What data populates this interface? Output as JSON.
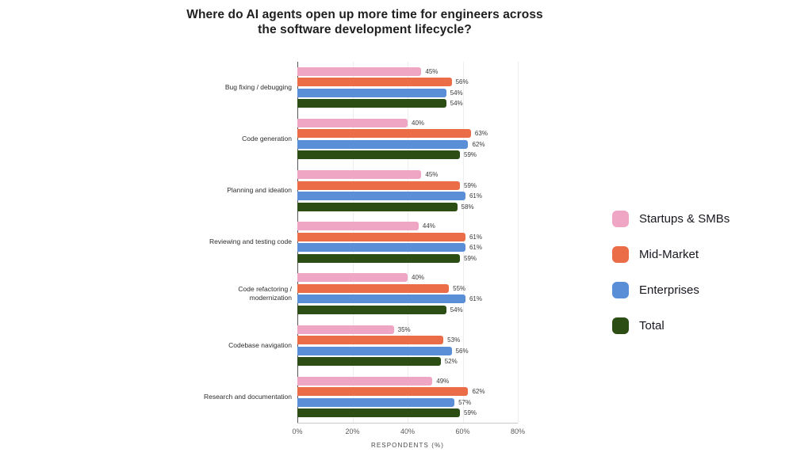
{
  "chart_data": {
    "type": "bar",
    "orientation": "horizontal",
    "title": "Where do AI agents open up more time for engineers across the software development lifecycle?",
    "xlabel": "RESPONDENTS (%)",
    "xlim": [
      0,
      80
    ],
    "xticks": [
      {
        "value": 0,
        "label": "0%"
      },
      {
        "value": 20,
        "label": "20%"
      },
      {
        "value": 40,
        "label": "40%"
      },
      {
        "value": 60,
        "label": "60%"
      },
      {
        "value": 80,
        "label": "80%"
      }
    ],
    "grid": true,
    "legend_position": "right",
    "value_label_suffix": "%",
    "categories": [
      "Bug fixing / debugging",
      "Code generation",
      "Planning and ideation",
      "Reviewing and testing code",
      "Code refactoring / modernization",
      "Codebase navigation",
      "Research and documentation"
    ],
    "series": [
      {
        "name": "Startups & SMBs",
        "color": "#EFA6C4",
        "values": [
          45,
          40,
          45,
          44,
          40,
          35,
          49
        ]
      },
      {
        "name": "Mid-Market",
        "color": "#EA6D47",
        "values": [
          56,
          63,
          59,
          61,
          55,
          53,
          62
        ]
      },
      {
        "name": "Enterprises",
        "color": "#5A8ED7",
        "values": [
          54,
          62,
          61,
          61,
          61,
          56,
          57
        ]
      },
      {
        "name": "Total",
        "color": "#2C4D13",
        "values": [
          54,
          59,
          58,
          59,
          54,
          52,
          59
        ]
      }
    ]
  },
  "colors": {
    "background": "#ffffff",
    "title_text": "#1f1f1f",
    "axis_line": "#55565a",
    "baseline": "#c9c9c9",
    "gridline": "#eeeeee",
    "tick_text": "#5a5a5a",
    "value_text": "#3a3a3a"
  }
}
